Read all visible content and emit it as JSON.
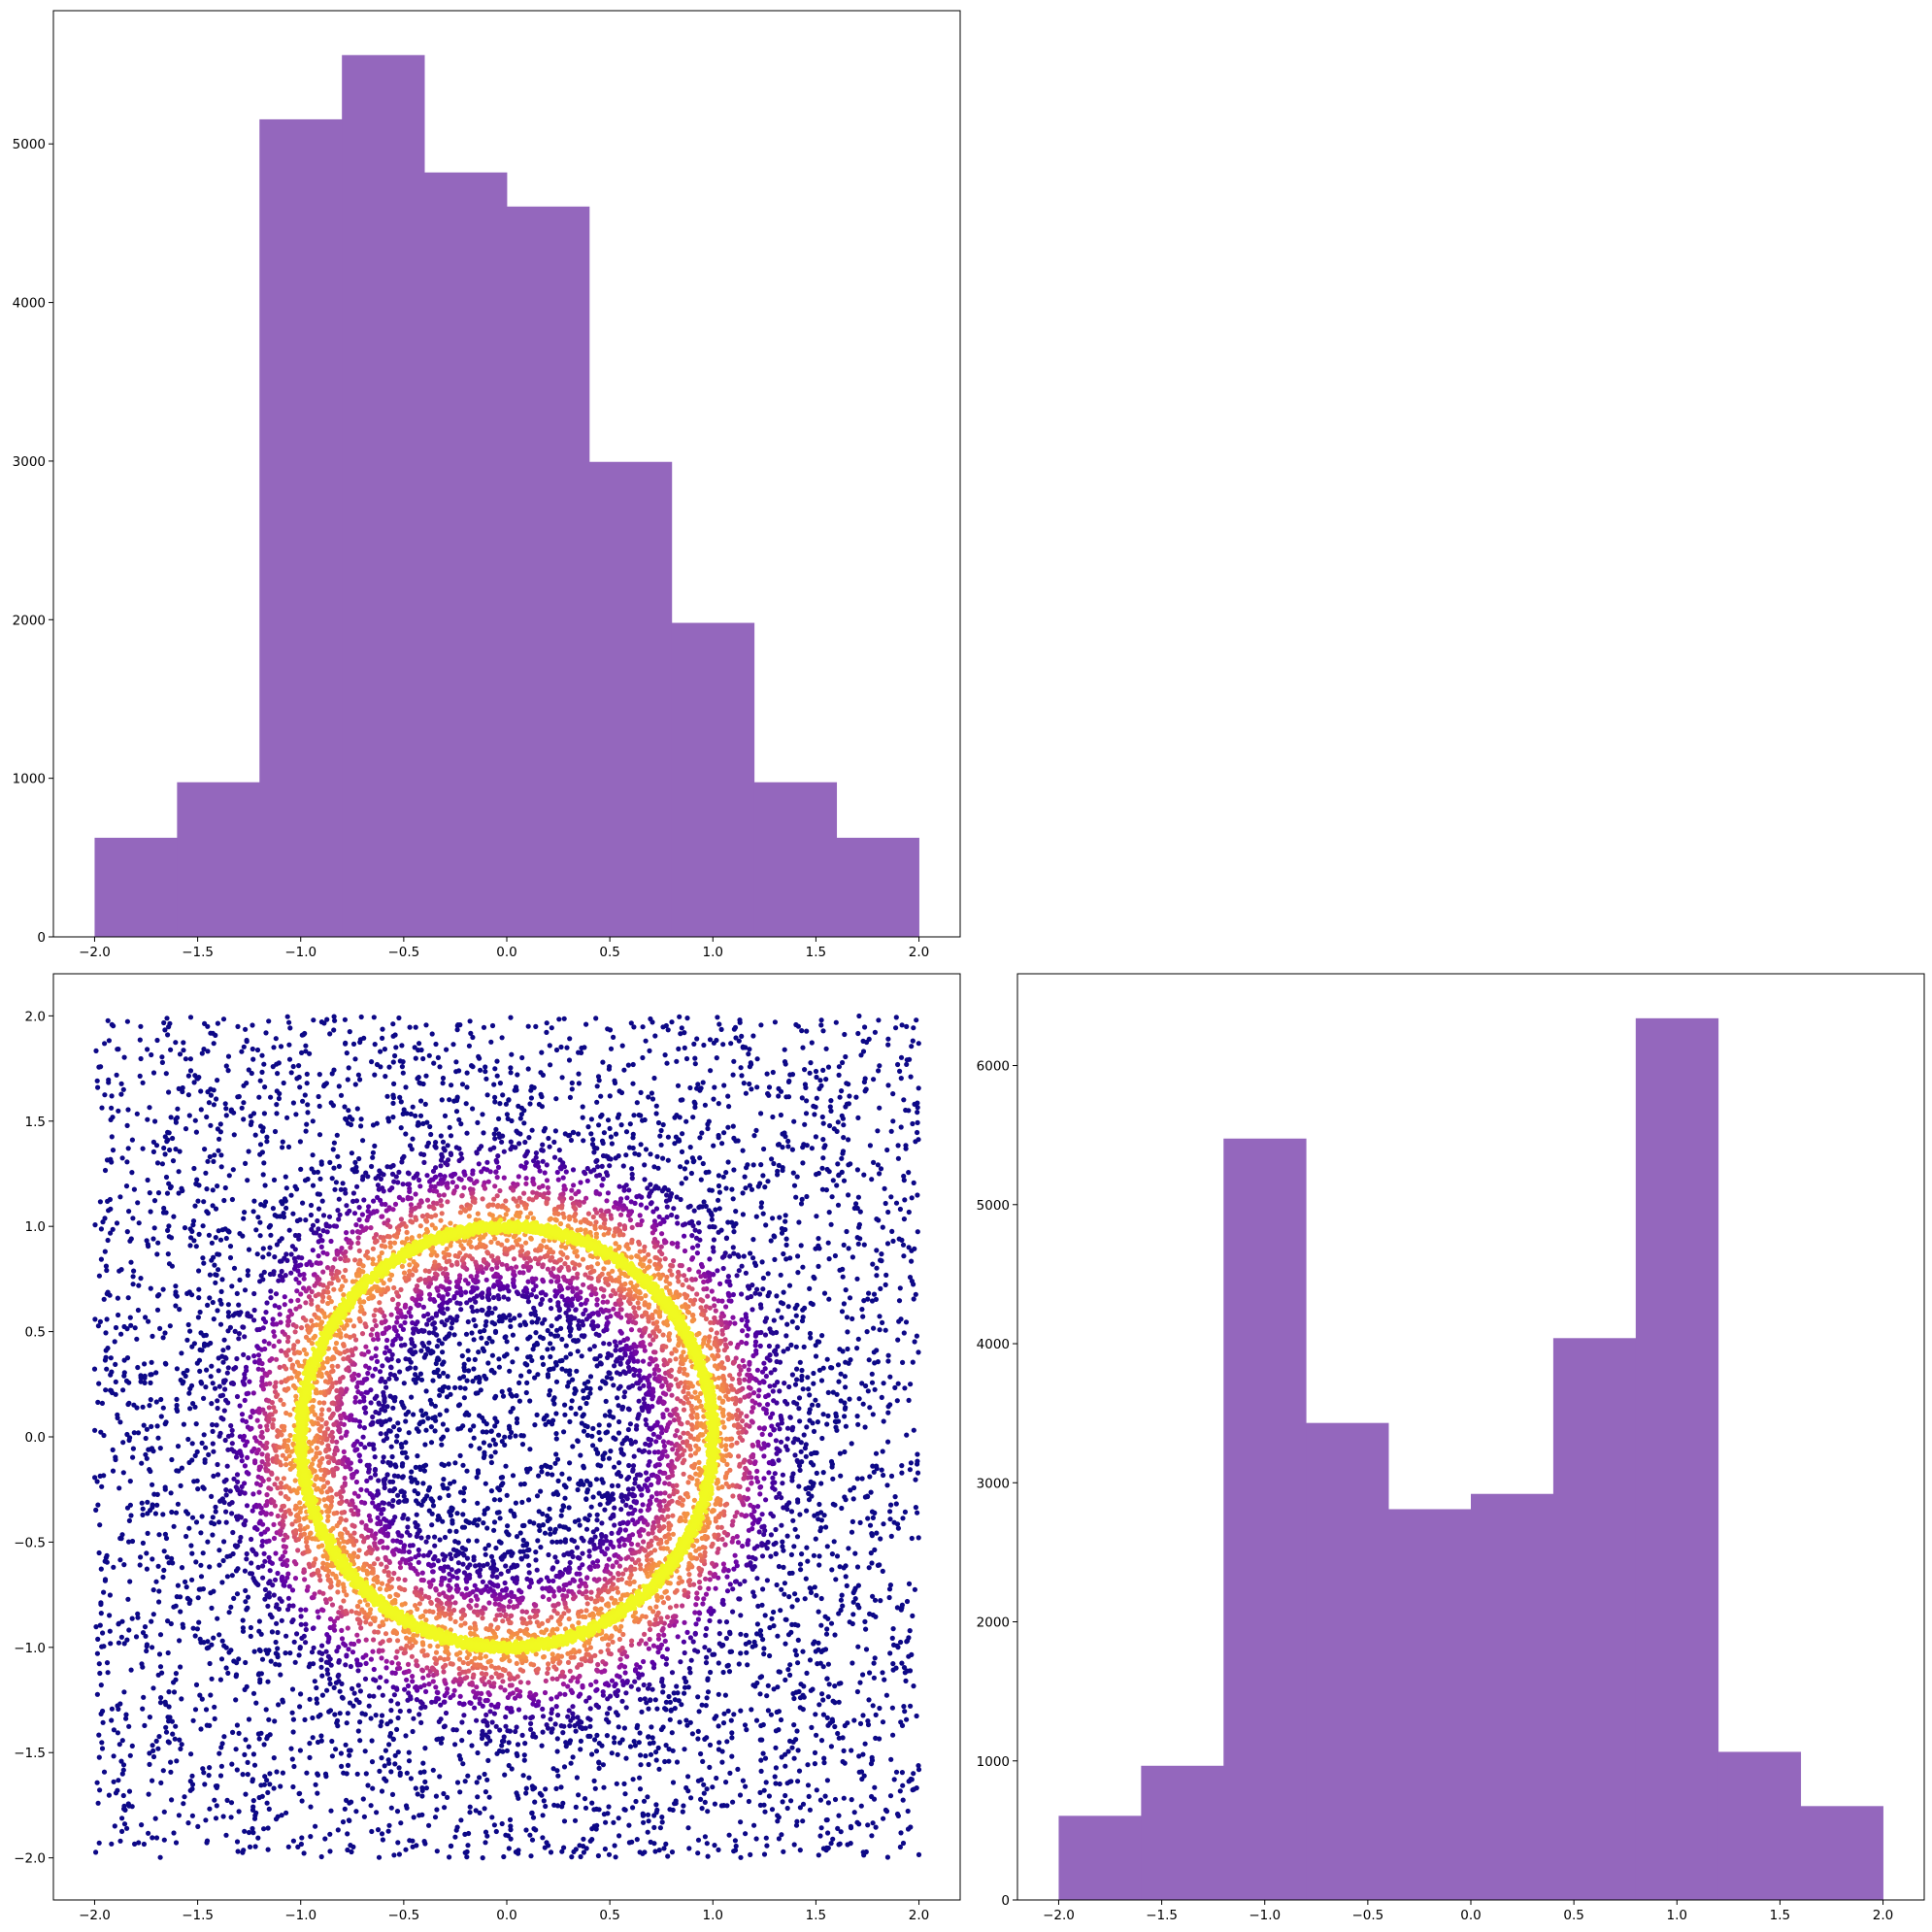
{
  "chart_data": [
    {
      "type": "bar",
      "subtype": "histogram",
      "position": "top-left",
      "bin_edges": [
        -2.0,
        -1.6,
        -1.2,
        -0.8,
        -0.4,
        0.0,
        0.4,
        0.8,
        1.2,
        1.6,
        2.0
      ],
      "values": [
        625,
        975,
        5155,
        5560,
        4820,
        4605,
        2995,
        1980,
        975,
        625
      ],
      "xlim": [
        -2.2,
        2.2
      ],
      "ylim": [
        0,
        5840
      ],
      "xticks": [
        "−2.0",
        "−1.5",
        "−1.0",
        "−0.5",
        "0.0",
        "0.5",
        "1.0",
        "1.5",
        "2.0"
      ],
      "yticks": [
        "0",
        "1000",
        "2000",
        "3000",
        "4000",
        "5000"
      ],
      "color": "#9467bd",
      "title": "",
      "xlabel": "",
      "ylabel": ""
    },
    {
      "type": "scatter",
      "position": "bottom-left",
      "description_of_points": "uniform points in [-2,2]x[-2,2] plus dense ring of radius 1 centered near (0,0); color encodes density (plasma colormap: dark purple low, yellow high)",
      "ring": {
        "center": [
          0.0,
          0.0
        ],
        "radius": 1.0
      },
      "x_range": [
        -2.0,
        2.0
      ],
      "y_range": [
        -2.0,
        2.0
      ],
      "xlim": [
        -2.2,
        2.2
      ],
      "ylim": [
        -2.2,
        2.2
      ],
      "colormap": "plasma",
      "colormap_stops": [
        "#0d0887",
        "#5c01a6",
        "#9c179e",
        "#cc4778",
        "#ed7953",
        "#fdb42f",
        "#f0f921"
      ],
      "xticks": [
        "−2.0",
        "−1.5",
        "−1.0",
        "−0.5",
        "0.0",
        "0.5",
        "1.0",
        "1.5",
        "2.0"
      ],
      "yticks": [
        "−2.0",
        "−1.5",
        "−1.0",
        "−0.5",
        "0.0",
        "0.5",
        "1.0",
        "1.5",
        "2.0"
      ],
      "title": "",
      "xlabel": "",
      "ylabel": ""
    },
    {
      "type": "bar",
      "subtype": "histogram",
      "position": "bottom-right",
      "bin_edges": [
        -2.0,
        -1.6,
        -1.2,
        -0.8,
        -0.4,
        0.0,
        0.4,
        0.8,
        1.2,
        1.6,
        2.0
      ],
      "values": [
        605,
        965,
        5475,
        3430,
        2810,
        2920,
        4040,
        6340,
        1065,
        675
      ],
      "xlim": [
        -2.2,
        2.2
      ],
      "ylim": [
        0,
        6660
      ],
      "xticks": [
        "−2.0",
        "−1.5",
        "−1.0",
        "−0.5",
        "0.0",
        "0.5",
        "1.0",
        "1.5",
        "2.0"
      ],
      "yticks": [
        "0",
        "1000",
        "2000",
        "3000",
        "4000",
        "5000",
        "6000"
      ],
      "color": "#9467bd",
      "title": "",
      "xlabel": "",
      "ylabel": ""
    }
  ]
}
